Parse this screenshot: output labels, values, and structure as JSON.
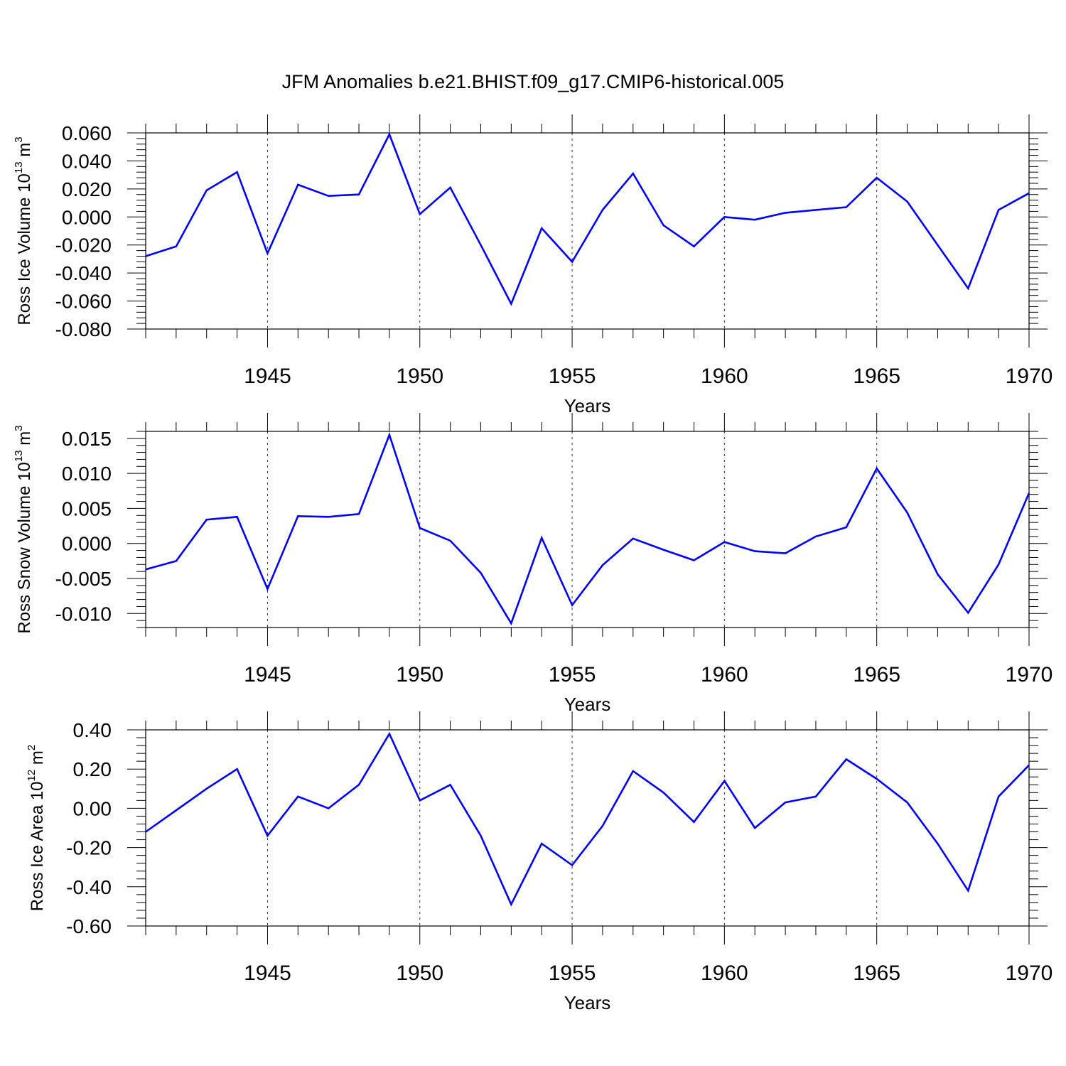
{
  "title": "JFM Anomalies b.e21.BHIST.f09_g17.CMIP6-historical.005",
  "colors": {
    "line": "#0000ff",
    "axis": "#000000",
    "grid": "#000000"
  },
  "chart_data": [
    {
      "type": "line",
      "ylabel": {
        "text": "Ross Ice Volume 10",
        "exp": "13",
        "unit": " m",
        "unit_exp": "3"
      },
      "xlabel": "Years",
      "xlim": [
        1941,
        1970
      ],
      "ylim": [
        -0.08,
        0.06
      ],
      "yticks": [
        -0.08,
        -0.06,
        -0.04,
        -0.02,
        0.0,
        0.02,
        0.04,
        0.06
      ],
      "ytick_labels": [
        "-0.080",
        "-0.060",
        "-0.040",
        "-0.020",
        "0.000",
        "0.020",
        "0.040",
        "0.060"
      ],
      "yminor_step": 0.004,
      "xticks": [
        1945,
        1950,
        1955,
        1960,
        1965,
        1970
      ],
      "xtick_labels": [
        "1945",
        "1950",
        "1955",
        "1960",
        "1965",
        "1970"
      ],
      "grid": "vertical dashed at labeled years",
      "series": [
        {
          "x": [
            1941,
            1942,
            1943,
            1944,
            1945,
            1946,
            1947,
            1948,
            1949,
            1950,
            1951,
            1952,
            1953,
            1954,
            1955,
            1956,
            1957,
            1958,
            1959,
            1960,
            1961,
            1962,
            1963,
            1964,
            1965,
            1966,
            1967,
            1968,
            1969,
            1970
          ],
          "values": [
            -0.028,
            -0.021,
            0.019,
            0.032,
            -0.026,
            0.023,
            0.015,
            0.016,
            0.059,
            0.002,
            0.021,
            -0.02,
            -0.062,
            -0.008,
            -0.032,
            0.005,
            0.031,
            -0.006,
            -0.021,
            0.0,
            -0.002,
            0.003,
            0.005,
            0.007,
            0.028,
            0.011,
            -0.02,
            -0.051,
            0.005,
            0.017
          ]
        }
      ]
    },
    {
      "type": "line",
      "ylabel": {
        "text": "Ross Snow Volume 10",
        "exp": "13",
        "unit": " m",
        "unit_exp": "3"
      },
      "xlabel": "Years",
      "xlim": [
        1941,
        1970
      ],
      "ylim": [
        -0.012,
        0.016
      ],
      "yticks": [
        -0.01,
        -0.005,
        0.0,
        0.005,
        0.01,
        0.015
      ],
      "ytick_labels": [
        "-0.010",
        "-0.005",
        "0.000",
        "0.005",
        "0.010",
        "0.015"
      ],
      "yminor_step": 0.001,
      "xticks": [
        1945,
        1950,
        1955,
        1960,
        1965,
        1970
      ],
      "xtick_labels": [
        "1945",
        "1950",
        "1955",
        "1960",
        "1965",
        "1970"
      ],
      "grid": "vertical dashed at labeled years",
      "series": [
        {
          "x": [
            1941,
            1942,
            1943,
            1944,
            1945,
            1946,
            1947,
            1948,
            1949,
            1950,
            1951,
            1952,
            1953,
            1954,
            1955,
            1956,
            1957,
            1958,
            1959,
            1960,
            1961,
            1962,
            1963,
            1964,
            1965,
            1966,
            1967,
            1968,
            1969,
            1970
          ],
          "values": [
            -0.0037,
            -0.0025,
            0.0034,
            0.0038,
            -0.0065,
            0.0039,
            0.0038,
            0.0042,
            0.0155,
            0.0022,
            0.0004,
            -0.0042,
            -0.0114,
            0.0008,
            -0.0088,
            -0.0031,
            0.0007,
            -0.0009,
            -0.0024,
            0.0002,
            -0.0011,
            -0.0014,
            0.001,
            0.0023,
            0.0107,
            0.0044,
            -0.0044,
            -0.0099,
            -0.003,
            0.0072
          ]
        }
      ]
    },
    {
      "type": "line",
      "ylabel": {
        "text": "Ross Ice Area 10",
        "exp": "12",
        "unit": " m",
        "unit_exp": "2"
      },
      "xlabel": "Years",
      "xlim": [
        1941,
        1970
      ],
      "ylim": [
        -0.6,
        0.4
      ],
      "yticks": [
        -0.6,
        -0.4,
        -0.2,
        0.0,
        0.2,
        0.4
      ],
      "ytick_labels": [
        "-0.60",
        "-0.40",
        "-0.20",
        "0.00",
        "0.20",
        "0.40"
      ],
      "yminor_step": 0.04,
      "xticks": [
        1945,
        1950,
        1955,
        1960,
        1965,
        1970
      ],
      "xtick_labels": [
        "1945",
        "1950",
        "1955",
        "1960",
        "1965",
        "1970"
      ],
      "grid": "vertical dashed at labeled years",
      "series": [
        {
          "x": [
            1941,
            1942,
            1943,
            1944,
            1945,
            1946,
            1947,
            1948,
            1949,
            1950,
            1951,
            1952,
            1953,
            1954,
            1955,
            1956,
            1957,
            1958,
            1959,
            1960,
            1961,
            1962,
            1963,
            1964,
            1965,
            1966,
            1967,
            1968,
            1969,
            1970
          ],
          "values": [
            -0.12,
            -0.01,
            0.1,
            0.2,
            -0.14,
            0.06,
            0.0,
            0.12,
            0.38,
            0.04,
            0.12,
            -0.14,
            -0.49,
            -0.18,
            -0.29,
            -0.09,
            0.19,
            0.08,
            -0.07,
            0.14,
            -0.1,
            0.03,
            0.06,
            0.25,
            0.15,
            0.03,
            -0.18,
            -0.42,
            0.06,
            0.22
          ]
        }
      ]
    }
  ]
}
